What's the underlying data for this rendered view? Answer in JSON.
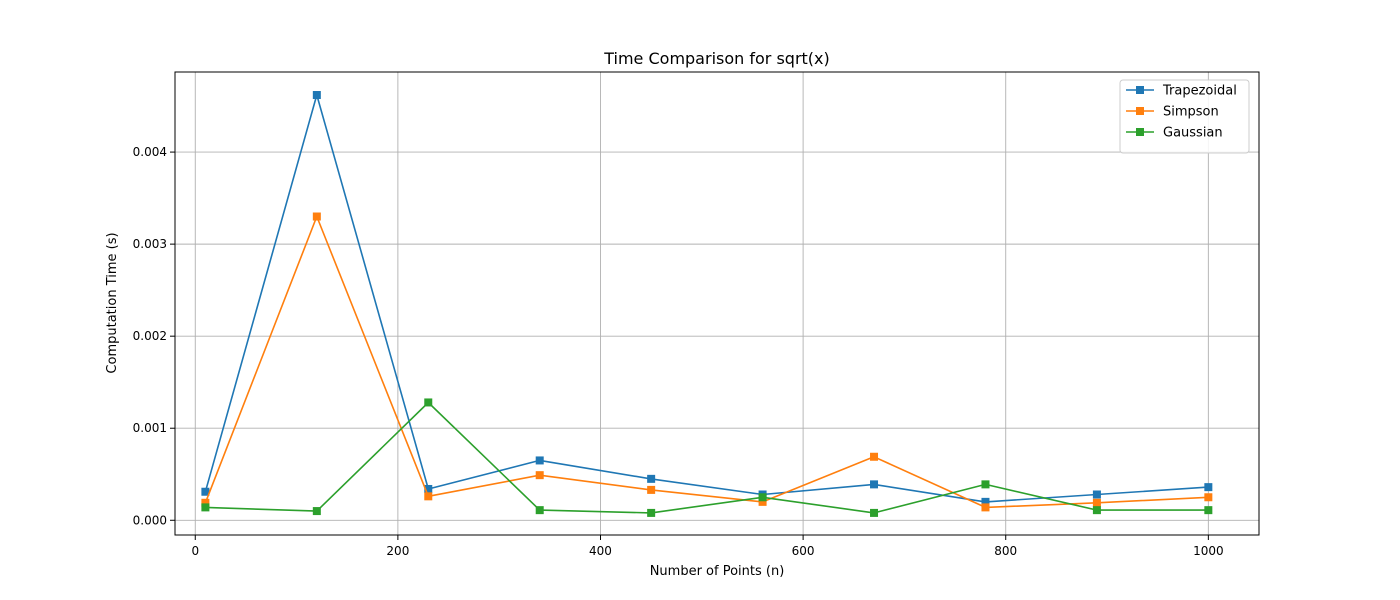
{
  "chart_data": {
    "type": "line",
    "title": "Time Comparison for sqrt(x)",
    "xlabel": "Number of Points (n)",
    "ylabel": "Computation Time (s)",
    "xlim": [
      -20,
      1050
    ],
    "ylim": [
      -0.00016,
      0.00487
    ],
    "xticks": [
      0,
      200,
      400,
      600,
      800,
      1000
    ],
    "yticks": [
      0.0,
      0.001,
      0.002,
      0.003,
      0.004
    ],
    "xtick_labels": [
      "0",
      "200",
      "400",
      "600",
      "800",
      "1000"
    ],
    "ytick_labels": [
      "0.000",
      "0.001",
      "0.002",
      "0.003",
      "0.004"
    ],
    "grid": true,
    "legend_position": "top-right",
    "marker": "square",
    "x": [
      10,
      120,
      230,
      340,
      450,
      560,
      670,
      780,
      890,
      1000
    ],
    "series": [
      {
        "name": "Trapezoidal",
        "color": "#1f77b4",
        "values": [
          0.00031,
          0.00462,
          0.00034,
          0.00065,
          0.00045,
          0.00028,
          0.00039,
          0.0002,
          0.00028,
          0.00036
        ]
      },
      {
        "name": "Simpson",
        "color": "#ff7f0e",
        "values": [
          0.00019,
          0.0033,
          0.00026,
          0.00049,
          0.00033,
          0.0002,
          0.00069,
          0.00014,
          0.00019,
          0.00025
        ]
      },
      {
        "name": "Gaussian",
        "color": "#2ca02c",
        "values": [
          0.00014,
          0.0001,
          0.00128,
          0.00011,
          8e-05,
          0.00025,
          8e-05,
          0.00039,
          0.00011,
          0.00011
        ]
      }
    ]
  }
}
